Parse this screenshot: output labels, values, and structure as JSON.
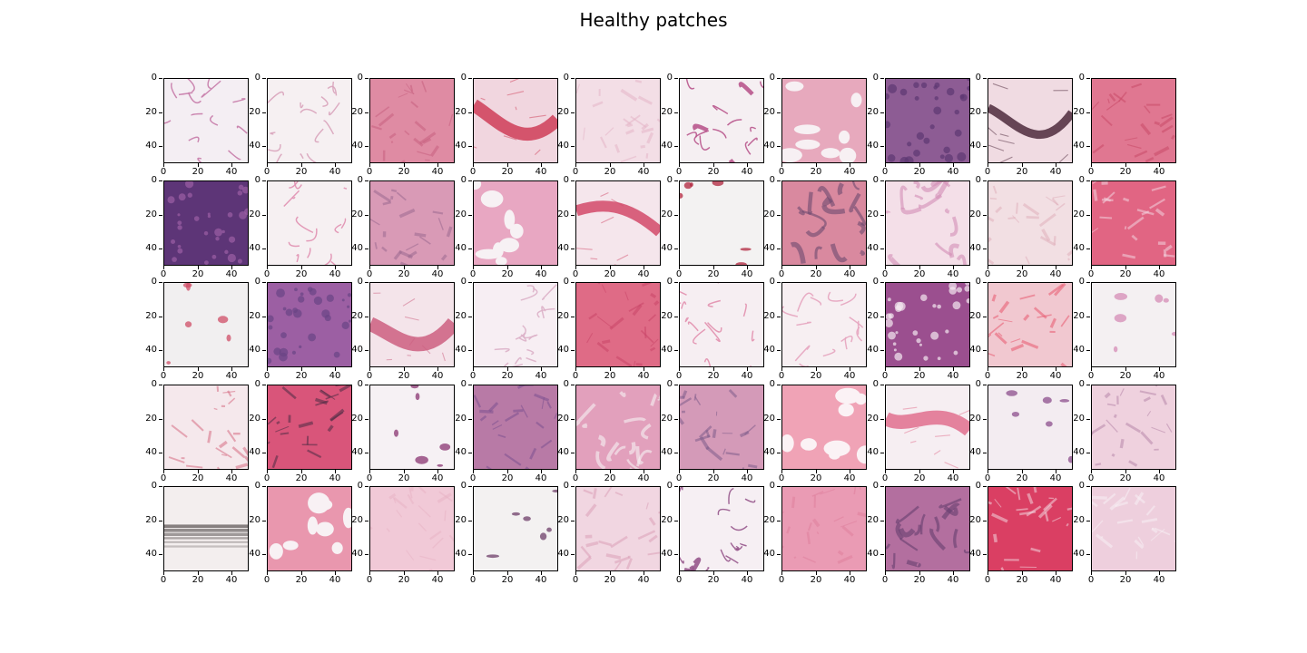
{
  "figure": {
    "title": "Healthy patches"
  },
  "axes": {
    "x_ticks": [
      "0",
      "20",
      "40"
    ],
    "y_ticks": [
      "0",
      "20",
      "40"
    ],
    "x_range": [
      0,
      50
    ],
    "y_range": [
      0,
      50
    ]
  },
  "grid": {
    "rows": 5,
    "cols": 10
  },
  "palette": {
    "white": "#f7f2f5",
    "light_pink": "#eab8c9",
    "pink": "#dd8ea8",
    "deep_pink": "#d95c78",
    "red": "#d23a58",
    "purple": "#8a4f8f",
    "dark_purple": "#5e3576",
    "gray": "#bfb7bb",
    "dark": "#3d2a3a"
  },
  "patches": [
    {
      "style": "fat",
      "base": "#f4eef3",
      "accent": "#c67aa8"
    },
    {
      "style": "fatpale",
      "base": "#f6f0f2",
      "accent": "#d9a3bb"
    },
    {
      "style": "dense",
      "base": "#df8ba3",
      "accent": "#c7607f"
    },
    {
      "style": "streak",
      "base": "#f1d6df",
      "accent": "#cf3d58"
    },
    {
      "style": "pale",
      "base": "#f3dee6",
      "accent": "#e3b5c7"
    },
    {
      "style": "fatstrand",
      "base": "#f5eff2",
      "accent": "#b9578d"
    },
    {
      "style": "fatpink",
      "base": "#e7a9bd",
      "accent": "#f7f0f3"
    },
    {
      "style": "purple",
      "base": "#8d5c94",
      "accent": "#5d3872"
    },
    {
      "style": "streakdark",
      "base": "#f0dbe2",
      "accent": "#4e2a3c"
    },
    {
      "style": "dense",
      "base": "#e07791",
      "accent": "#c94a68"
    },
    {
      "style": "darkpurple",
      "base": "#5d3577",
      "accent": "#9c5fa5"
    },
    {
      "style": "fat",
      "base": "#f6f0f2",
      "accent": "#e190b1"
    },
    {
      "style": "fibrous",
      "base": "#d99ab6",
      "accent": "#9b6a8f"
    },
    {
      "style": "fatpink",
      "base": "#e8a7c2",
      "accent": "#f7f1f4"
    },
    {
      "style": "redband",
      "base": "#f5e6ec",
      "accent": "#d2496a"
    },
    {
      "style": "blank",
      "base": "#f3f2f2",
      "accent": "#b0243c"
    },
    {
      "style": "mixed",
      "base": "#d9899f",
      "accent": "#6d4a6f"
    },
    {
      "style": "strands",
      "base": "#f4dfe8",
      "accent": "#d28db6"
    },
    {
      "style": "pale",
      "base": "#f2dfe3",
      "accent": "#e0aebb"
    },
    {
      "style": "dense",
      "base": "#e16583",
      "accent": "#f2d4de"
    },
    {
      "style": "blankred",
      "base": "#f1eff0",
      "accent": "#cf4d67"
    },
    {
      "style": "purple",
      "base": "#9c5fa3",
      "accent": "#6a4584"
    },
    {
      "style": "swirl",
      "base": "#f4e4ea",
      "accent": "#cc5f80"
    },
    {
      "style": "fatpale",
      "base": "#f7eef3",
      "accent": "#dcb0c8"
    },
    {
      "style": "dense",
      "base": "#df6b86",
      "accent": "#c94668"
    },
    {
      "style": "fat",
      "base": "#f6eef2",
      "accent": "#e28fae"
    },
    {
      "style": "fatpale",
      "base": "#f7eff2",
      "accent": "#e5a4bf"
    },
    {
      "style": "darkpurple",
      "base": "#9b4f8f",
      "accent": "#f4e8ef"
    },
    {
      "style": "pale",
      "base": "#f1c8d0",
      "accent": "#e8586d"
    },
    {
      "style": "blankpink",
      "base": "#f4f0f2",
      "accent": "#d68cb5"
    },
    {
      "style": "pale",
      "base": "#f5e8ec",
      "accent": "#d66b84"
    },
    {
      "style": "dense",
      "base": "#d9557a",
      "accent": "#4b2c44"
    },
    {
      "style": "blankdots",
      "base": "#f6f1f4",
      "accent": "#8a3472"
    },
    {
      "style": "fibrous",
      "base": "#b87aa6",
      "accent": "#7b5190"
    },
    {
      "style": "mixed",
      "base": "#e2a0bc",
      "accent": "#f6f1f4"
    },
    {
      "style": "fibrous",
      "base": "#d49ab8",
      "accent": "#7d5c8a"
    },
    {
      "style": "fatpink",
      "base": "#f0a3b6",
      "accent": "#fbf2f5"
    },
    {
      "style": "redband",
      "base": "#f6eef2",
      "accent": "#e16f8e"
    },
    {
      "style": "blankdots",
      "base": "#f3ecf1",
      "accent": "#8c4f8c"
    },
    {
      "style": "pale",
      "base": "#efd1de",
      "accent": "#b787a9"
    },
    {
      "style": "stripes",
      "base": "#f3eeee",
      "accent": "#3d3535"
    },
    {
      "style": "fatpink",
      "base": "#e997ae",
      "accent": "#f8f1f4"
    },
    {
      "style": "pale",
      "base": "#f1c9d7",
      "accent": "#e7b2c4"
    },
    {
      "style": "blank",
      "base": "#f3f1f1",
      "accent": "#6d3d68"
    },
    {
      "style": "pale",
      "base": "#f1d6e1",
      "accent": "#dba0b8"
    },
    {
      "style": "fatstrand",
      "base": "#f6eff3",
      "accent": "#97568c"
    },
    {
      "style": "dense",
      "base": "#ea9bb4",
      "accent": "#de7f9d"
    },
    {
      "style": "mixed",
      "base": "#b36f9f",
      "accent": "#65406f"
    },
    {
      "style": "dense",
      "base": "#da3f63",
      "accent": "#f3d6de"
    },
    {
      "style": "pale",
      "base": "#eecfdd",
      "accent": "#f7f1f4"
    }
  ]
}
